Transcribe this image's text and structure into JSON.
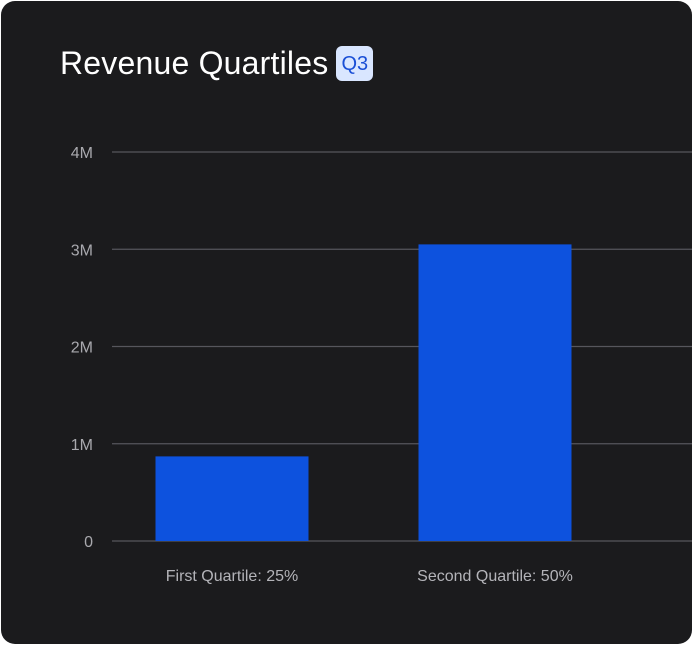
{
  "header": {
    "title": "Revenue Quartiles",
    "badge": "Q3"
  },
  "colors": {
    "background": "#1b1b1d",
    "bar": "#0d52de",
    "badge_bg": "#d9e6ff",
    "badge_text": "#1a4fd6"
  },
  "chart_data": {
    "type": "bar",
    "categories": [
      "First Quartile: 25%",
      "Second Quartile: 50%"
    ],
    "values": [
      870000,
      3050000
    ],
    "ylim": [
      0,
      4000000
    ],
    "yticks": [
      0,
      1000000,
      2000000,
      3000000,
      4000000
    ],
    "ytick_labels": [
      "0",
      "1M",
      "2M",
      "3M",
      "4M"
    ],
    "grid": true,
    "legend": "none"
  }
}
